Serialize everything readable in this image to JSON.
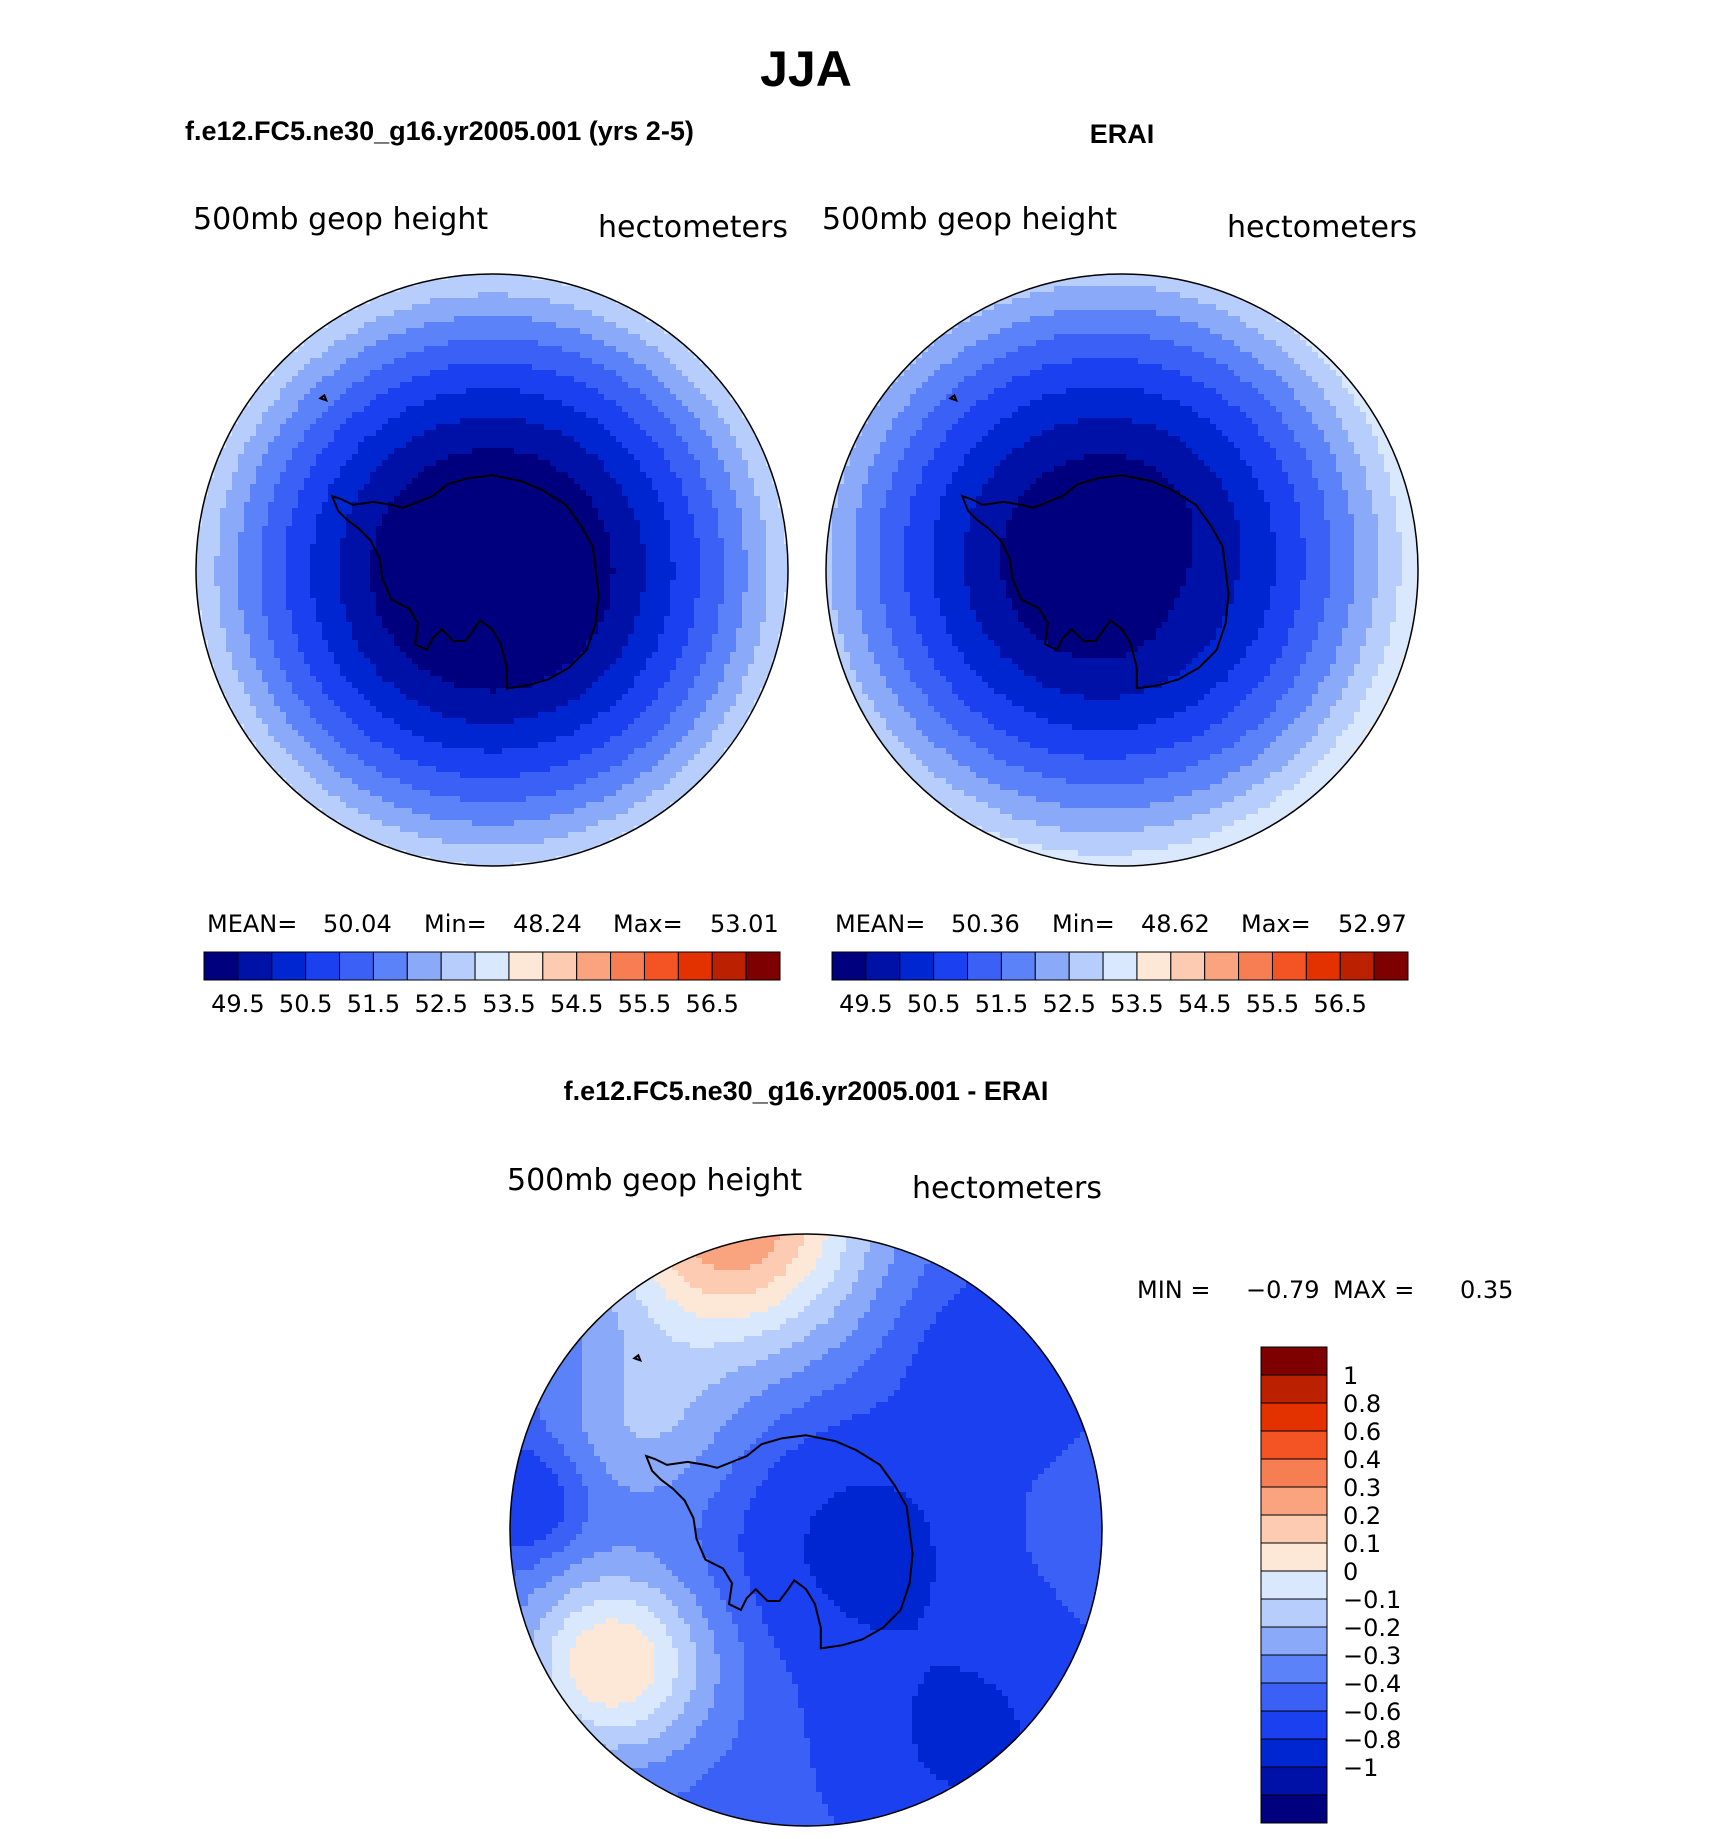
{
  "figure": {
    "title": "JJA",
    "variable_label": "500mb geop height",
    "units_label": "hectometers"
  },
  "palette": [
    "#00007f",
    "#0011a8",
    "#0026d2",
    "#1a40f0",
    "#3a60f5",
    "#5b82f8",
    "#8aaaf9",
    "#b7cdfb",
    "#d9e8fd",
    "#fde7d6",
    "#fccbb2",
    "#f9a47e",
    "#f77d52",
    "#f45323",
    "#e33200",
    "#bb2000",
    "#7f0000"
  ],
  "chart_data": [
    {
      "type": "heatmap",
      "name": "model",
      "title": "f.e12.FC5.ne30_g16.yr2005.001 (yrs 2-5)",
      "projection": "south-polar stereographic",
      "mean_label": "MEAN=",
      "mean": "50.04",
      "min_label": "Min=",
      "min": "48.24",
      "max_label": "Max=",
      "max": "53.01",
      "contour_levels": [
        49.5,
        50,
        50.5,
        51,
        51.5,
        52,
        52.5,
        53,
        53.5,
        54,
        54.5,
        55,
        55.5,
        56,
        56.5
      ],
      "colorbar_tick_labels": [
        "49.5",
        "50.5",
        "51.5",
        "52.5",
        "53.5",
        "54.5",
        "55.5",
        "56.5"
      ],
      "field": {
        "pole_value": 48.4,
        "rim_value": 53.0,
        "pole_offset_deg": [
          0,
          0
        ],
        "amplitude": 0.0
      }
    },
    {
      "type": "heatmap",
      "name": "obs",
      "title": "ERAI",
      "projection": "south-polar stereographic",
      "mean_label": "MEAN=",
      "mean": "50.36",
      "min_label": "Min=",
      "min": "48.62",
      "max_label": "Max=",
      "max": "52.97",
      "contour_levels": [
        49.5,
        50,
        50.5,
        51,
        51.5,
        52,
        52.5,
        53,
        53.5,
        54,
        54.5,
        55,
        55.5,
        56,
        56.5
      ],
      "colorbar_tick_labels": [
        "49.5",
        "50.5",
        "51.5",
        "52.5",
        "53.5",
        "54.5",
        "55.5",
        "56.5"
      ],
      "field": {
        "pole_value": 48.7,
        "rim_value": 53.0,
        "pole_offset_deg": [
          -6,
          -4
        ],
        "amplitude": 0.25
      }
    },
    {
      "type": "heatmap",
      "name": "difference",
      "title": "f.e12.FC5.ne30_g16.yr2005.001 - ERAI",
      "projection": "south-polar stereographic",
      "min_label": "MIN =",
      "min": "−0.79",
      "max_label": "MAX =",
      "max": "0.35",
      "contour_levels": [
        -1,
        -0.8,
        -0.6,
        -0.4,
        -0.3,
        -0.2,
        -0.1,
        0,
        0.1,
        0.2,
        0.3,
        0.4,
        0.6,
        0.8,
        1
      ],
      "colorbar_tick_labels": [
        "1",
        "0.8",
        "0.6",
        "0.4",
        "0.3",
        "0.2",
        "0.1",
        "0",
        "−0.1",
        "−0.2",
        "−0.3",
        "−0.4",
        "−0.6",
        "−0.8",
        "−1"
      ],
      "features": [
        {
          "label": "positive anomaly near top",
          "value": 0.35
        },
        {
          "label": "positive anomaly lower-left",
          "value": 0.2
        },
        {
          "label": "negative anomaly over East Antarctica",
          "value": -0.7
        },
        {
          "label": "negative anomaly lower-right",
          "value": -0.65
        },
        {
          "label": "negative anomaly left edge",
          "value": -0.55
        }
      ]
    }
  ]
}
